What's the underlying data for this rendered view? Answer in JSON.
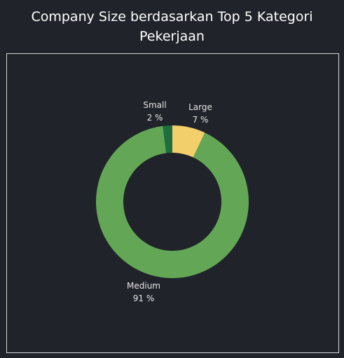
{
  "title_line1": "Company Size berdasarkan Top 5 Kategori",
  "title_line2": "Pekerjaan",
  "chart_data": {
    "type": "pie",
    "donut": true,
    "slices": [
      {
        "name": "Large",
        "value": 7,
        "value_label": "7 %",
        "color": "#f2cf6b"
      },
      {
        "name": "Medium",
        "value": 91,
        "value_label": "91 %",
        "color": "#63a756"
      },
      {
        "name": "Small",
        "value": 2,
        "value_label": "2 %",
        "color": "#1f6e3f"
      }
    ],
    "title": "Company Size berdasarkan Top 5 Kategori Pekerjaan",
    "legend": "none"
  }
}
